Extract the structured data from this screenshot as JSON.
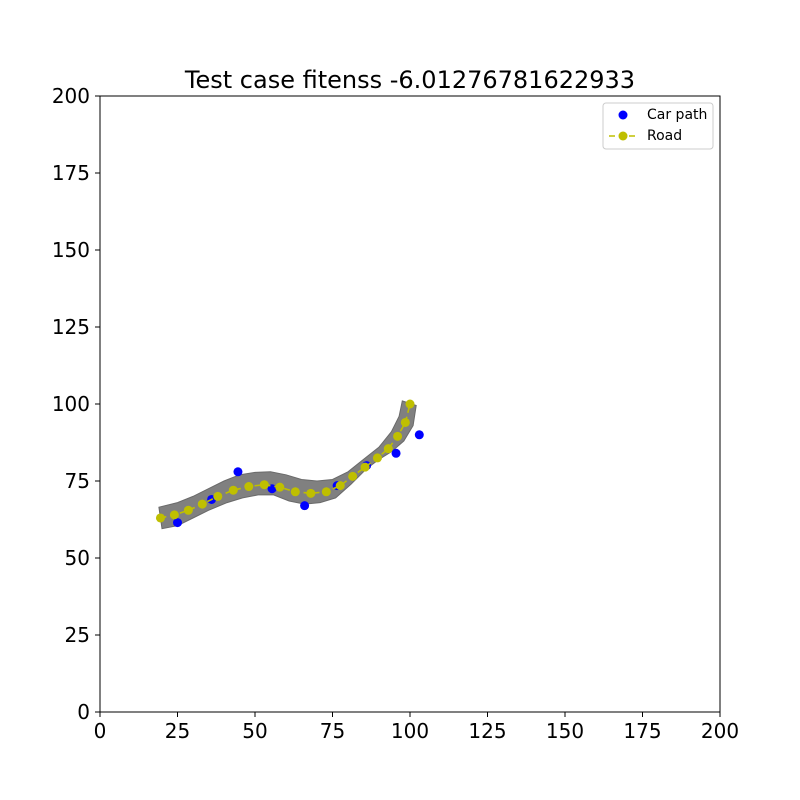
{
  "chart_data": {
    "type": "scatter",
    "title": "Test case fitenss -6.01276781622933",
    "xlabel": "",
    "ylabel": "",
    "xlim": [
      0,
      200
    ],
    "ylim": [
      0,
      200
    ],
    "xticks": [
      "0",
      "25",
      "50",
      "75",
      "100",
      "125",
      "150",
      "175",
      "200"
    ],
    "yticks": [
      "0",
      "25",
      "50",
      "75",
      "100",
      "125",
      "150",
      "175",
      "200"
    ],
    "grid": false,
    "legend_position": "top-right",
    "road_band": {
      "color": "#808080",
      "upper": [
        [
          19,
          66.5
        ],
        [
          25,
          68
        ],
        [
          30,
          70
        ],
        [
          35,
          72.5
        ],
        [
          40,
          75
        ],
        [
          45,
          77
        ],
        [
          50,
          77.8
        ],
        [
          55,
          78
        ],
        [
          60,
          77
        ],
        [
          65,
          75.5
        ],
        [
          70,
          75
        ],
        [
          75,
          75.5
        ],
        [
          80,
          78
        ],
        [
          85,
          82
        ],
        [
          90,
          86
        ],
        [
          94,
          91
        ],
        [
          96.5,
          96
        ],
        [
          97.5,
          101
        ],
        [
          102,
          99.5
        ]
      ],
      "lower": [
        [
          102,
          99.5
        ],
        [
          101,
          93
        ],
        [
          98,
          88
        ],
        [
          94,
          84.5
        ],
        [
          90,
          82
        ],
        [
          86,
          79
        ],
        [
          81,
          74
        ],
        [
          76,
          69.5
        ],
        [
          71,
          68
        ],
        [
          66,
          67.5
        ],
        [
          61,
          68.5
        ],
        [
          56,
          70.5
        ],
        [
          51,
          70.5
        ],
        [
          46,
          69.5
        ],
        [
          41,
          68
        ],
        [
          35,
          65.5
        ],
        [
          30,
          63
        ],
        [
          25,
          60.5
        ],
        [
          20,
          59.5
        ]
      ]
    },
    "series": [
      {
        "name": "Car path",
        "marker": "circle",
        "line": "none",
        "color": "#0000ff",
        "points": [
          [
            25,
            61.5
          ],
          [
            36,
            69
          ],
          [
            44.5,
            78
          ],
          [
            55.5,
            72.5
          ],
          [
            66,
            67
          ],
          [
            76.5,
            73.5
          ],
          [
            86,
            80
          ],
          [
            95.5,
            84
          ],
          [
            103,
            90
          ]
        ]
      },
      {
        "name": "Road",
        "marker": "circle",
        "line": "dashed",
        "color": "#bfbf00",
        "points": [
          [
            19.5,
            63
          ],
          [
            24,
            64
          ],
          [
            28.5,
            65.5
          ],
          [
            33,
            67.5
          ],
          [
            38,
            70
          ],
          [
            43,
            72
          ],
          [
            48,
            73.2
          ],
          [
            53,
            73.8
          ],
          [
            58,
            73
          ],
          [
            63,
            71.5
          ],
          [
            68,
            71
          ],
          [
            73,
            71.5
          ],
          [
            77.5,
            73.5
          ],
          [
            81.5,
            76.5
          ],
          [
            85.5,
            79.5
          ],
          [
            89.5,
            82.5
          ],
          [
            93,
            85.5
          ],
          [
            96,
            89.5
          ],
          [
            98.5,
            94
          ],
          [
            100,
            100
          ]
        ]
      }
    ]
  }
}
